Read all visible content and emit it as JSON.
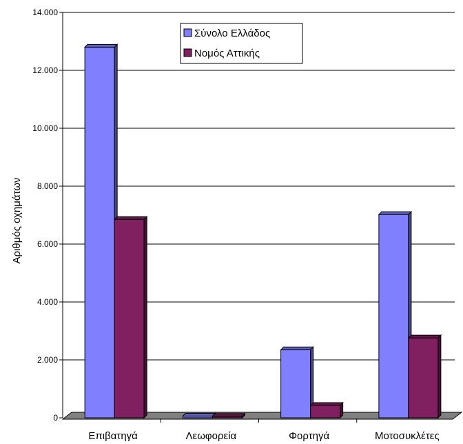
{
  "chart_data": {
    "type": "bar",
    "title": "",
    "xlabel": "",
    "ylabel": "Αριθμός οχημάτων",
    "categories": [
      "Επιβατηγά",
      "Λεωφορεία",
      "Φορτηγά",
      "Μοτοσυκλέτες"
    ],
    "series": [
      {
        "name": "Σύνολο Ελλάδος",
        "values": [
          12800,
          60,
          2350,
          7020
        ],
        "color": "#8080ff"
      },
      {
        "name": "Νομός Αττικής",
        "values": [
          6850,
          50,
          430,
          2760
        ],
        "color": "#802060"
      }
    ],
    "ylim": [
      0,
      14000
    ],
    "yticks": [
      0,
      2000,
      4000,
      6000,
      8000,
      10000,
      12000,
      14000
    ],
    "ytick_labels": [
      "0",
      "2.000",
      "4.000",
      "6.000",
      "8.000",
      "10.000",
      "12.000",
      "14.000"
    ],
    "grid": true,
    "three_d": true,
    "legend_position": "top"
  }
}
